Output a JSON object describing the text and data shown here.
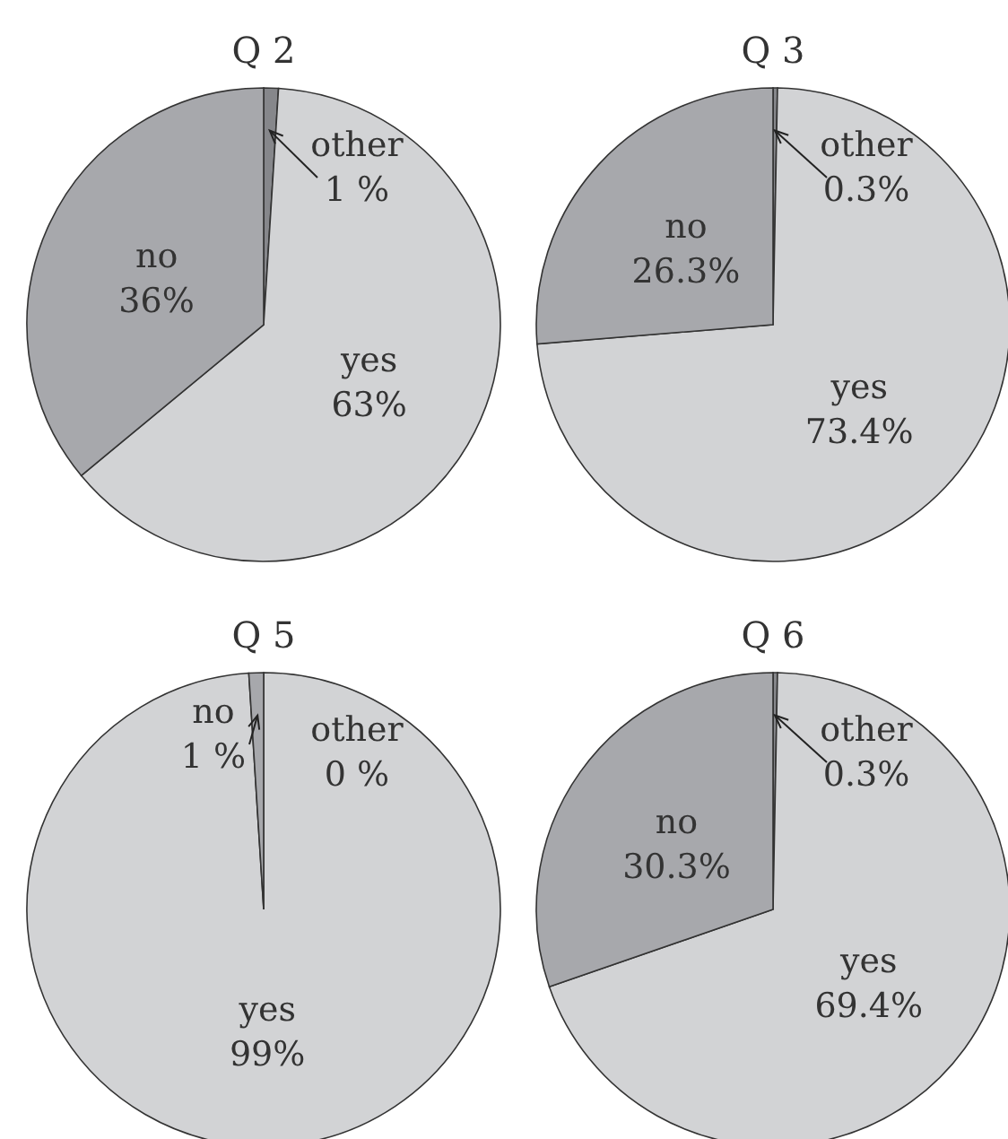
{
  "chart_data": [
    {
      "type": "pie",
      "title": "Q 2",
      "categories": [
        "other",
        "yes",
        "no"
      ],
      "values": [
        1,
        63,
        36
      ],
      "value_labels": [
        "1 %",
        "63%",
        "36%"
      ],
      "colors": [
        "#86878b",
        "#d2d3d5",
        "#a7a8ac"
      ]
    },
    {
      "type": "pie",
      "title": "Q 3",
      "categories": [
        "other",
        "yes",
        "no"
      ],
      "values": [
        0.3,
        73.4,
        26.3
      ],
      "value_labels": [
        "0.3%",
        "73.4%",
        "26.3%"
      ],
      "colors": [
        "#86878b",
        "#d2d3d5",
        "#a7a8ac"
      ]
    },
    {
      "type": "pie",
      "title": "Q 5",
      "categories": [
        "other",
        "yes",
        "no"
      ],
      "values": [
        0,
        99,
        1
      ],
      "value_labels": [
        "0 %",
        "99%",
        "1 %"
      ],
      "colors": [
        "#86878b",
        "#d2d3d5",
        "#a7a8ac"
      ]
    },
    {
      "type": "pie",
      "title": "Q 6",
      "categories": [
        "other",
        "yes",
        "no"
      ],
      "values": [
        0.3,
        69.4,
        30.3
      ],
      "value_labels": [
        "0.3%",
        "69.4%",
        "30.3%"
      ],
      "colors": [
        "#86878b",
        "#d2d3d5",
        "#a7a8ac"
      ]
    }
  ]
}
